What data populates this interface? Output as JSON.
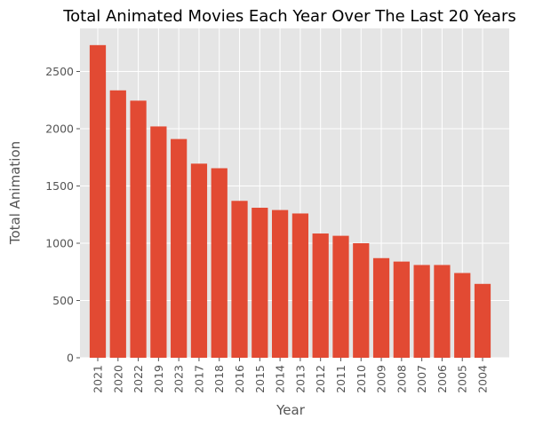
{
  "chart_data": {
    "type": "bar",
    "title": "Total Animated Movies Each Year Over The Last 20 Years",
    "xlabel": "Year",
    "ylabel": "Total Animation",
    "categories": [
      "2021",
      "2020",
      "2022",
      "2019",
      "2023",
      "2017",
      "2018",
      "2016",
      "2015",
      "2014",
      "2013",
      "2012",
      "2011",
      "2010",
      "2009",
      "2008",
      "2007",
      "2006",
      "2005",
      "2004"
    ],
    "values": [
      2730,
      2335,
      2245,
      2020,
      1910,
      1695,
      1655,
      1370,
      1310,
      1290,
      1260,
      1085,
      1065,
      1000,
      870,
      840,
      810,
      810,
      740,
      645
    ],
    "ylim": [
      0,
      2870
    ],
    "yticks": [
      0,
      500,
      1000,
      1500,
      2000,
      2500
    ],
    "grid": true,
    "colors": {
      "bar": "#e24a33",
      "background": "#e5e5e5",
      "grid": "#ffffff"
    }
  }
}
